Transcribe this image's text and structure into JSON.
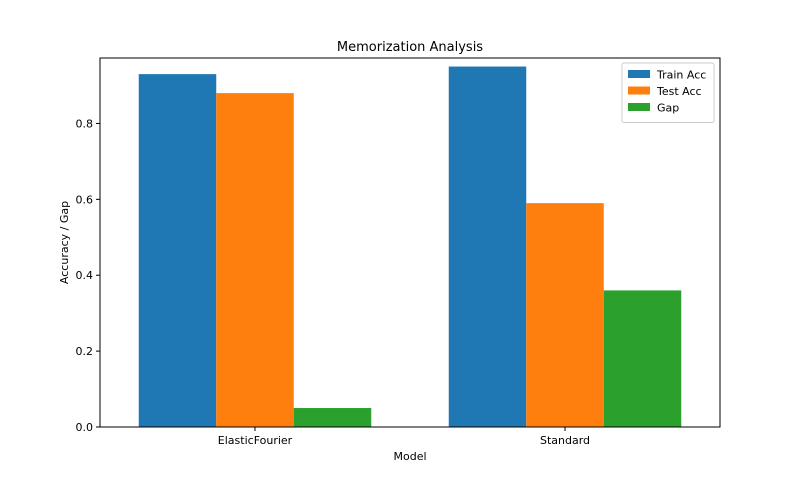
{
  "chart_data": {
    "type": "bar",
    "title": "Memorization Analysis",
    "xlabel": "Model",
    "ylabel": "Accuracy / Gap",
    "categories": [
      "ElasticFourier",
      "Standard"
    ],
    "series": [
      {
        "name": "Train Acc",
        "values": [
          0.93,
          0.95
        ],
        "color": "#1f77b4"
      },
      {
        "name": "Test Acc",
        "values": [
          0.88,
          0.59
        ],
        "color": "#ff7f0e"
      },
      {
        "name": "Gap",
        "values": [
          0.05,
          0.36
        ],
        "color": "#2ca02c"
      }
    ],
    "ylim": [
      0,
      0.9725
    ],
    "yticks": [
      0.0,
      0.2,
      0.4,
      0.6,
      0.8
    ],
    "ytick_labels": [
      "0.0",
      "0.2",
      "0.4",
      "0.6",
      "0.8"
    ],
    "grid": false,
    "legend_position": "top-right"
  }
}
